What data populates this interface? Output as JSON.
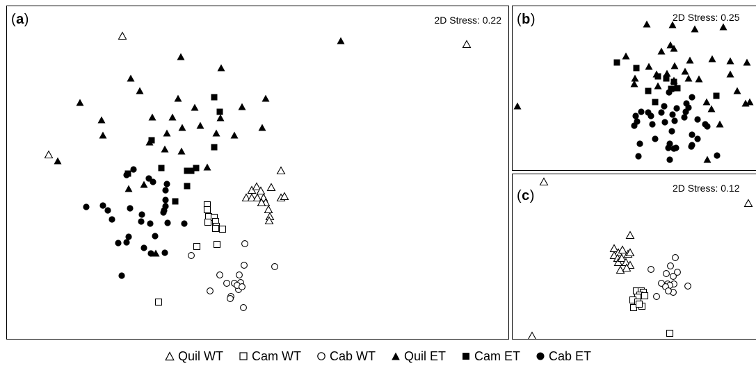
{
  "stress_labels": {
    "a": "2D Stress: 0.22",
    "b": "2D Stress: 0.25",
    "c": "2D Stress: 0.12"
  },
  "panel_labels": {
    "a": "a",
    "b": "b",
    "c": "c"
  },
  "legend": [
    {
      "key": "quil_wt",
      "label": "Quil WT",
      "marker": "triangle-open"
    },
    {
      "key": "cam_wt",
      "label": "Cam WT",
      "marker": "square-open"
    },
    {
      "key": "cab_wt",
      "label": "Cab WT",
      "marker": "circle-open"
    },
    {
      "key": "quil_et",
      "label": "Quil ET",
      "marker": "triangle-filled"
    },
    {
      "key": "cam_et",
      "label": "Cam ET",
      "marker": "square-filled"
    },
    {
      "key": "cab_et",
      "label": "Cab ET",
      "marker": "circle-filled"
    }
  ],
  "chart_data": [
    {
      "type": "scatter",
      "panel": "a",
      "stress": "2D Stress: 0.22",
      "xlim": [
        0,
        723
      ],
      "ylim": [
        0,
        481
      ],
      "series": [
        {
          "name": "Quil WT",
          "points": [
            [
              166,
              43
            ],
            [
              661,
              55
            ],
            [
              60,
              214
            ],
            [
              394,
              237
            ],
            [
              352,
              265
            ],
            [
              359,
              260
            ],
            [
              365,
              266
            ],
            [
              380,
              261
            ],
            [
              344,
              276
            ],
            [
              352,
              276
            ],
            [
              360,
              276
            ],
            [
              369,
              276
            ],
            [
              372,
              283
            ],
            [
              366,
              283
            ],
            [
              376,
              293
            ],
            [
              394,
              276
            ],
            [
              399,
              274
            ],
            [
              378,
              303
            ],
            [
              377,
              309
            ]
          ]
        },
        {
          "name": "Cam WT",
          "points": [
            [
              288,
              286
            ],
            [
              288,
              293
            ],
            [
              290,
              303
            ],
            [
              289,
              311
            ],
            [
              298,
              304
            ],
            [
              300,
              310
            ],
            [
              301,
              317
            ],
            [
              310,
              321
            ],
            [
              300,
              320
            ],
            [
              273,
              346
            ],
            [
              302,
              343
            ],
            [
              218,
              426
            ]
          ]
        },
        {
          "name": "Cab WT",
          "points": [
            [
              342,
              342
            ],
            [
              265,
              359
            ],
            [
              306,
              387
            ],
            [
              341,
              373
            ],
            [
              385,
              375
            ],
            [
              334,
              387
            ],
            [
              316,
              399
            ],
            [
              327,
              399
            ],
            [
              333,
              408
            ],
            [
              336,
              398
            ],
            [
              331,
              402
            ],
            [
              322,
              418
            ],
            [
              292,
              410
            ],
            [
              338,
              404
            ],
            [
              321,
              421
            ],
            [
              340,
              434
            ]
          ]
        },
        {
          "name": "Quil ET",
          "points": [
            [
              480,
              50
            ],
            [
              250,
              73
            ],
            [
              308,
              89
            ],
            [
              178,
              104
            ],
            [
              191,
              122
            ],
            [
              105,
              139
            ],
            [
              246,
              133
            ],
            [
              372,
              133
            ],
            [
              136,
              164
            ],
            [
              138,
              186
            ],
            [
              209,
              160
            ],
            [
              307,
              161
            ],
            [
              338,
              145
            ],
            [
              270,
              146
            ],
            [
              238,
              160
            ],
            [
              252,
              175
            ],
            [
              278,
              172
            ],
            [
              301,
              183
            ],
            [
              327,
              186
            ],
            [
              367,
              175
            ],
            [
              230,
              183
            ],
            [
              205,
              196
            ],
            [
              227,
              206
            ],
            [
              251,
              209
            ],
            [
              73,
              223
            ],
            [
              288,
              232
            ],
            [
              197,
              257
            ],
            [
              214,
              356
            ],
            [
              175,
              263
            ]
          ]
        },
        {
          "name": "Cam ET",
          "points": [
            [
              298,
              131
            ],
            [
              306,
              152
            ],
            [
              208,
              193
            ],
            [
              298,
              203
            ],
            [
              174,
              241
            ],
            [
              222,
              233
            ],
            [
              259,
              237
            ],
            [
              265,
              237
            ],
            [
              272,
              233
            ],
            [
              259,
              259
            ],
            [
              242,
              281
            ]
          ]
        },
        {
          "name": "Cab ET",
          "points": [
            [
              182,
              235
            ],
            [
              172,
              243
            ],
            [
              204,
              248
            ],
            [
              210,
              253
            ],
            [
              230,
              256
            ],
            [
              228,
              265
            ],
            [
              228,
              279
            ],
            [
              228,
              288
            ],
            [
              226,
              294
            ],
            [
              225,
              297
            ],
            [
              114,
              289
            ],
            [
              138,
              287
            ],
            [
              145,
              294
            ],
            [
              151,
              307
            ],
            [
              177,
              291
            ],
            [
              194,
              300
            ],
            [
              193,
              310
            ],
            [
              206,
              313
            ],
            [
              231,
              312
            ],
            [
              255,
              313
            ],
            [
              175,
              332
            ],
            [
              213,
              331
            ],
            [
              160,
              341
            ],
            [
              172,
              340
            ],
            [
              197,
              348
            ],
            [
              207,
              356
            ],
            [
              227,
              355
            ],
            [
              165,
              388
            ]
          ]
        }
      ]
    },
    {
      "type": "scatter",
      "panel": "b",
      "stress": "2D Stress: 0.25",
      "xlim": [
        0,
        351
      ],
      "ylim": [
        0,
        238
      ],
      "series": [
        {
          "name": "Quil ET",
          "points": [
            [
              193,
              26
            ],
            [
              230,
              27
            ],
            [
              262,
              33
            ],
            [
              303,
              30
            ],
            [
              227,
              56
            ],
            [
              214,
              65
            ],
            [
              232,
              61
            ],
            [
              163,
              72
            ],
            [
              196,
              87
            ],
            [
              233,
              86
            ],
            [
              255,
              78
            ],
            [
              287,
              76
            ],
            [
              313,
              79
            ],
            [
              337,
              81
            ],
            [
              207,
              98
            ],
            [
              175,
              112
            ],
            [
              222,
              97
            ],
            [
              248,
              94
            ],
            [
              253,
              104
            ],
            [
              268,
              105
            ],
            [
              313,
              98
            ],
            [
              176,
              104
            ],
            [
              209,
              115
            ],
            [
              232,
              107
            ],
            [
              279,
              138
            ],
            [
              323,
              122
            ],
            [
              341,
              138
            ],
            [
              335,
              140
            ],
            [
              286,
              148
            ],
            [
              298,
              170
            ],
            [
              280,
              221
            ],
            [
              7,
              144
            ]
          ]
        },
        {
          "name": "Cam ET",
          "points": [
            [
              150,
              81
            ],
            [
              178,
              89
            ],
            [
              209,
              101
            ],
            [
              221,
              104
            ],
            [
              232,
              109
            ],
            [
              237,
              118
            ],
            [
              228,
              119
            ],
            [
              195,
              122
            ],
            [
              293,
              129
            ],
            [
              205,
              138
            ]
          ]
        },
        {
          "name": "Cab ET",
          "points": [
            [
              225,
              124
            ],
            [
              258,
              131
            ],
            [
              218,
              144
            ],
            [
              214,
              153
            ],
            [
              230,
              156
            ],
            [
              236,
              147
            ],
            [
              250,
              140
            ],
            [
              185,
              152
            ],
            [
              195,
              153
            ],
            [
              199,
              158
            ],
            [
              177,
              158
            ],
            [
              179,
              166
            ],
            [
              201,
              170
            ],
            [
              219,
              167
            ],
            [
              233,
              165
            ],
            [
              249,
              152
            ],
            [
              253,
              146
            ],
            [
              247,
              160
            ],
            [
              266,
              163
            ],
            [
              175,
              172
            ],
            [
              229,
              180
            ],
            [
              280,
              173
            ],
            [
              277,
              170
            ],
            [
              258,
              185
            ],
            [
              183,
              198
            ],
            [
              205,
              191
            ],
            [
              226,
              198
            ],
            [
              235,
              204
            ],
            [
              258,
              200
            ],
            [
              266,
              191
            ],
            [
              181,
              216
            ],
            [
              224,
              204
            ],
            [
              232,
              205
            ],
            [
              257,
              202
            ],
            [
              294,
              215
            ],
            [
              226,
              221
            ]
          ]
        }
      ]
    },
    {
      "type": "scatter",
      "panel": "c",
      "stress": "2D Stress: 0.12",
      "xlim": [
        0,
        351
      ],
      "ylim": [
        0,
        239
      ],
      "series": [
        {
          "name": "Quil WT",
          "points": [
            [
              45,
              11
            ],
            [
              339,
              42
            ],
            [
              169,
              88
            ],
            [
              146,
              107
            ],
            [
              152,
              113
            ],
            [
              158,
              109
            ],
            [
              146,
              117
            ],
            [
              151,
              121
            ],
            [
              166,
              115
            ],
            [
              169,
              113
            ],
            [
              152,
              127
            ],
            [
              157,
              121
            ],
            [
              163,
              127
            ],
            [
              169,
              131
            ],
            [
              155,
              138
            ],
            [
              164,
              135
            ],
            [
              28,
              233
            ]
          ]
        },
        {
          "name": "Cam WT",
          "points": [
            [
              178,
              168
            ],
            [
              185,
              168
            ],
            [
              188,
              170
            ],
            [
              183,
              174
            ],
            [
              190,
              175
            ],
            [
              180,
              177
            ],
            [
              173,
              181
            ],
            [
              180,
              184
            ],
            [
              174,
              192
            ],
            [
              186,
              190
            ],
            [
              182,
              187
            ],
            [
              226,
              229
            ]
          ]
        },
        {
          "name": "Cab WT",
          "points": [
            [
              234,
              120
            ],
            [
              199,
              137
            ],
            [
              227,
              132
            ],
            [
              221,
              143
            ],
            [
              231,
              147
            ],
            [
              237,
              141
            ],
            [
              214,
              157
            ],
            [
              223,
              158
            ],
            [
              232,
              158
            ],
            [
              226,
              160
            ],
            [
              220,
              162
            ],
            [
              231,
              170
            ],
            [
              252,
              161
            ],
            [
              207,
              176
            ],
            [
              224,
              168
            ]
          ]
        }
      ]
    }
  ]
}
